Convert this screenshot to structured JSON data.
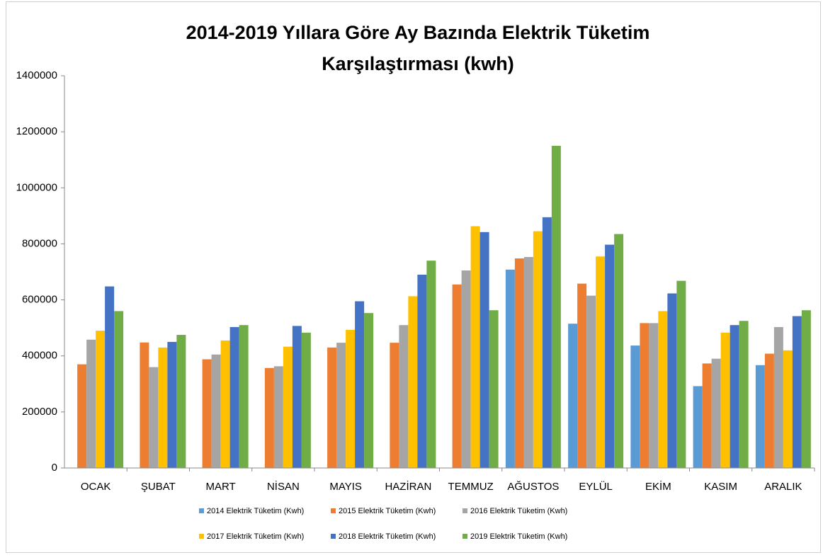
{
  "chart_data": {
    "type": "bar",
    "title_lines": [
      "2014-2019 Yıllara Göre Ay Bazında Elektrik Tüketim",
      "Karşılaştırması (kwh)"
    ],
    "categories": [
      "OCAK",
      "ŞUBAT",
      "MART",
      "NİSAN",
      "MAYIS",
      "HAZİRAN",
      "TEMMUZ",
      "AĞUSTOS",
      "EYLÜL",
      "EKİM",
      "KASIM",
      "ARALIK"
    ],
    "series": [
      {
        "name": "2014 Elektrik Tüketim (Kwh)",
        "color": "#5b9bd5",
        "values": [
          null,
          null,
          null,
          null,
          null,
          null,
          null,
          708000,
          515000,
          437000,
          292000,
          367000
        ]
      },
      {
        "name": "2015 Elektrik Tüketim (Kwh)",
        "color": "#ed7d31",
        "values": [
          370000,
          448000,
          388000,
          357000,
          430000,
          447000,
          655000,
          748000,
          658000,
          517000,
          373000,
          408000
        ]
      },
      {
        "name": "2016 Elektrik Tüketim (Kwh)",
        "color": "#a5a5a5",
        "values": [
          458000,
          360000,
          405000,
          363000,
          447000,
          510000,
          705000,
          753000,
          615000,
          517000,
          390000,
          503000
        ]
      },
      {
        "name": "2017 Elektrik Tüketim (Kwh)",
        "color": "#ffc000",
        "values": [
          490000,
          430000,
          455000,
          433000,
          493000,
          613000,
          863000,
          845000,
          755000,
          560000,
          483000,
          420000
        ]
      },
      {
        "name": "2018 Elektrik Tüketim (Kwh)",
        "color": "#4472c4",
        "values": [
          648000,
          450000,
          503000,
          507000,
          595000,
          690000,
          842000,
          895000,
          797000,
          623000,
          510000,
          542000
        ]
      },
      {
        "name": "2019 Elektrik Tüketim (Kwh)",
        "color": "#70ad47",
        "values": [
          560000,
          475000,
          510000,
          483000,
          553000,
          740000,
          563000,
          1150000,
          835000,
          668000,
          525000,
          563000
        ]
      }
    ],
    "ylim": [
      0,
      1400000
    ],
    "yticks": [
      0,
      200000,
      400000,
      600000,
      800000,
      1000000,
      1200000,
      1400000
    ],
    "grid": false,
    "legend": "bottom"
  }
}
